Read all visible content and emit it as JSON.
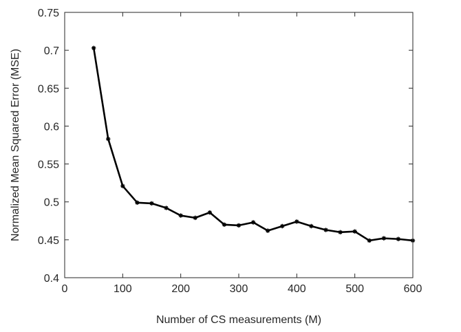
{
  "chart_data": {
    "type": "line",
    "title": "",
    "xlabel": "Number of CS measurements (M)",
    "ylabel": "Normalized Mean Squared Error (MSE)",
    "xlim": [
      0,
      600
    ],
    "ylim": [
      0.4,
      0.75
    ],
    "xticks": [
      0,
      100,
      200,
      300,
      400,
      500,
      600
    ],
    "yticks": [
      0.4,
      0.45,
      0.5,
      0.55,
      0.6,
      0.65,
      0.7,
      0.75
    ],
    "xtick_labels": [
      "0",
      "100",
      "200",
      "300",
      "400",
      "500",
      "600"
    ],
    "ytick_labels": [
      "0.4",
      "0.45",
      "0.5",
      "0.55",
      "0.6",
      "0.65",
      "0.7",
      "0.75"
    ],
    "grid": false,
    "legend": "none",
    "series": [
      {
        "color": "#000000",
        "marker": "star",
        "x": [
          50,
          75,
          100,
          125,
          150,
          175,
          200,
          225,
          250,
          275,
          300,
          325,
          350,
          375,
          400,
          425,
          450,
          475,
          500,
          525,
          550,
          575,
          600
        ],
        "y": [
          0.703,
          0.583,
          0.521,
          0.499,
          0.498,
          0.492,
          0.482,
          0.479,
          0.486,
          0.47,
          0.469,
          0.473,
          0.462,
          0.468,
          0.474,
          0.468,
          0.463,
          0.46,
          0.461,
          0.449,
          0.452,
          0.451,
          0.449
        ]
      }
    ]
  }
}
